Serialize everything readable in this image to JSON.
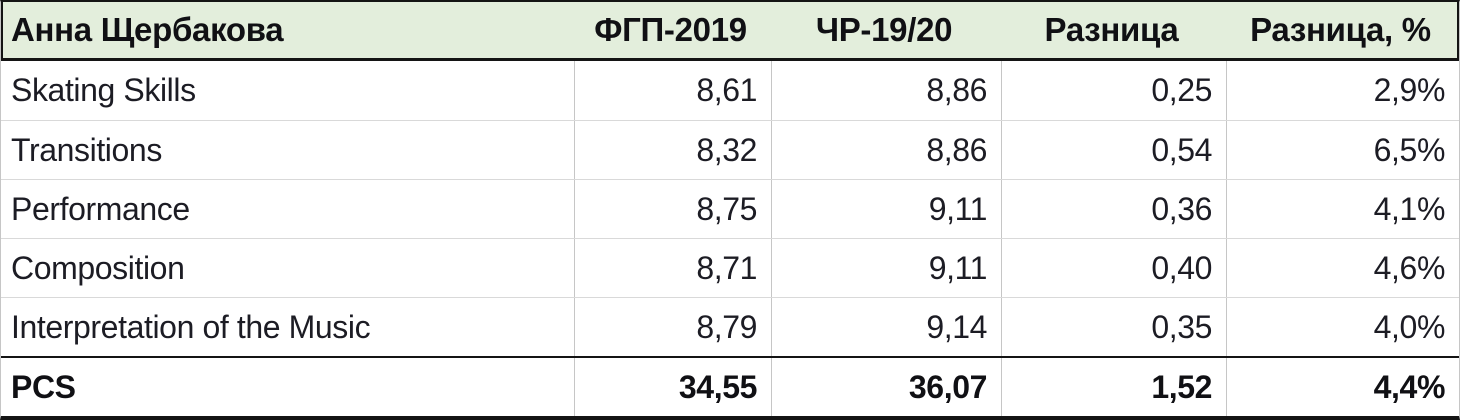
{
  "sheet": {
    "header": {
      "name_label": "Анна Щербакова",
      "columns": [
        "ФГП-2019",
        "ЧР-19/20",
        "Разница",
        "Разница, %"
      ]
    },
    "rows": [
      {
        "label": "Skating Skills",
        "fgp": "8,61",
        "chr": "8,86",
        "diff": "0,25",
        "diff_pct": "2,9%"
      },
      {
        "label": "Transitions",
        "fgp": "8,32",
        "chr": "8,86",
        "diff": "0,54",
        "diff_pct": "6,5%"
      },
      {
        "label": "Performance",
        "fgp": "8,75",
        "chr": "9,11",
        "diff": "0,36",
        "diff_pct": "4,1%"
      },
      {
        "label": "Composition",
        "fgp": "8,71",
        "chr": "9,11",
        "diff": "0,40",
        "diff_pct": "4,6%"
      },
      {
        "label": "Interpretation of the Music",
        "fgp": "8,79",
        "chr": "9,14",
        "diff": "0,35",
        "diff_pct": "4,0%"
      }
    ],
    "total": {
      "label": "PCS",
      "fgp": "34,55",
      "chr": "36,07",
      "diff": "1,52",
      "diff_pct": "4,4%"
    }
  },
  "colors": {
    "header_bg": "#e3eedc",
    "border_black": "#141414",
    "grid_vertical": "#c6c6c6",
    "grid_horizontal": "#d9d9d9",
    "text": "#1c1c24"
  }
}
